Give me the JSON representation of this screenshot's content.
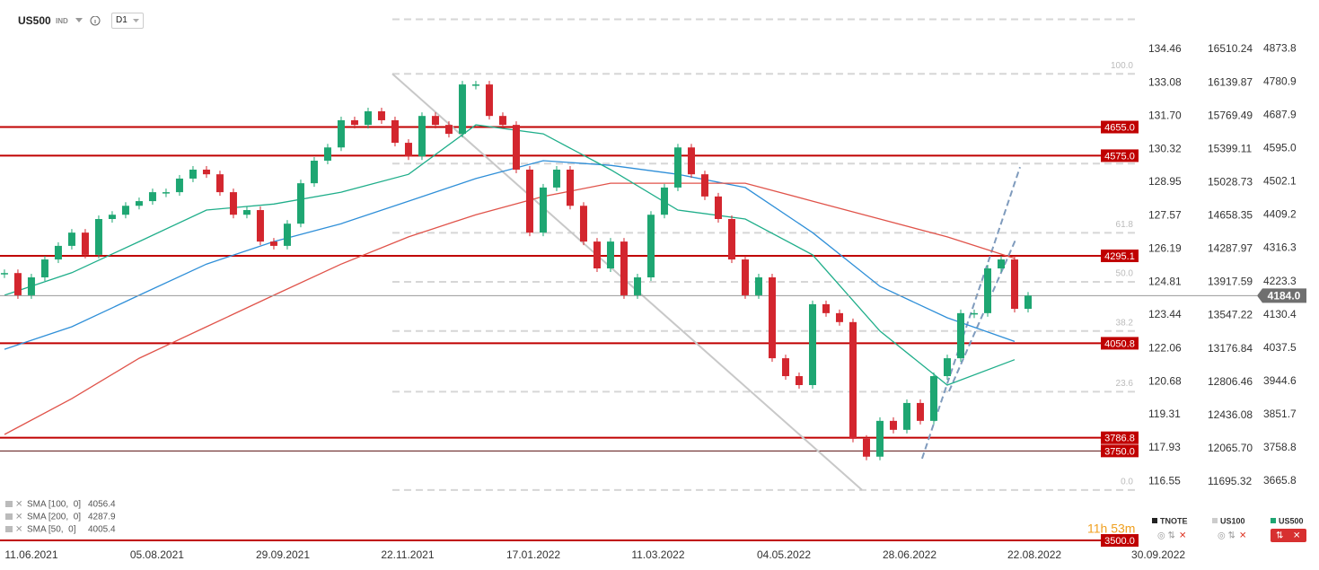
{
  "header": {
    "symbol": "US500",
    "kind": "IND",
    "timeframe": "D1"
  },
  "chart_data": {
    "type": "candlestick",
    "xlim": [
      -0.33,
      84
    ],
    "xticks": [
      {
        "value": 2,
        "label": "11.06.2021"
      },
      {
        "value": 11.33,
        "label": "05.08.2021"
      },
      {
        "value": 20.67,
        "label": "29.09.2021"
      },
      {
        "value": 29.93,
        "label": "22.11.2021"
      },
      {
        "value": 39.27,
        "label": "17.01.2022"
      },
      {
        "value": 48.53,
        "label": "11.03.2022"
      },
      {
        "value": 57.87,
        "label": "04.05.2022"
      },
      {
        "value": 67.2,
        "label": "28.06.2022"
      },
      {
        "value": 76.47,
        "label": "22.08.2022"
      },
      {
        "value": 85.67,
        "label": "30.09.2022"
      }
    ],
    "y_axes": [
      {
        "name": "TNOTE",
        "color": "#222222",
        "lim": [
          113.8,
          136.51
        ],
        "ticks": [
          {
            "value": 134.46,
            "label": "134.46"
          },
          {
            "value": 133.08,
            "label": "133.08"
          },
          {
            "value": 131.7,
            "label": "131.70"
          },
          {
            "value": 130.32,
            "label": "130.32"
          },
          {
            "value": 128.95,
            "label": "128.95"
          },
          {
            "value": 127.57,
            "label": "127.57"
          },
          {
            "value": 126.19,
            "label": "126.19"
          },
          {
            "value": 124.81,
            "label": "124.81"
          },
          {
            "value": 123.44,
            "label": "123.44"
          },
          {
            "value": 122.06,
            "label": "122.06"
          },
          {
            "value": 120.68,
            "label": "120.68"
          },
          {
            "value": 119.31,
            "label": "119.31"
          },
          {
            "value": 117.93,
            "label": "117.93"
          },
          {
            "value": 116.55,
            "label": "116.55"
          }
        ]
      },
      {
        "name": "US100",
        "color": "#cccccc",
        "lim": [
          10965,
          17060
        ],
        "ticks": [
          {
            "value": 16510.24,
            "label": "16510.24"
          },
          {
            "value": 16139.87,
            "label": "16139.87"
          },
          {
            "value": 15769.49,
            "label": "15769.49"
          },
          {
            "value": 15399.11,
            "label": "15399.11"
          },
          {
            "value": 15028.73,
            "label": "15028.73"
          },
          {
            "value": 14658.35,
            "label": "14658.35"
          },
          {
            "value": 14287.97,
            "label": "14287.97"
          },
          {
            "value": 13917.59,
            "label": "13917.59"
          },
          {
            "value": 13547.22,
            "label": "13547.22"
          },
          {
            "value": 13176.84,
            "label": "13176.84"
          },
          {
            "value": 12806.46,
            "label": "12806.46"
          },
          {
            "value": 12436.08,
            "label": "12436.08"
          },
          {
            "value": 12065.7,
            "label": "12065.70"
          },
          {
            "value": 11695.32,
            "label": "11695.32"
          }
        ]
      },
      {
        "name": "US500",
        "color": "#1ea672",
        "lim": [
          3480,
          5010
        ],
        "ticks": [
          {
            "value": 4873.8,
            "label": "4873.8"
          },
          {
            "value": 4780.9,
            "label": "4780.9"
          },
          {
            "value": 4687.9,
            "label": "4687.9"
          },
          {
            "value": 4595,
            "label": "4595.0"
          },
          {
            "value": 4502.1,
            "label": "4502.1"
          },
          {
            "value": 4409.2,
            "label": "4409.2"
          },
          {
            "value": 4316.3,
            "label": "4316.3"
          },
          {
            "value": 4223.3,
            "label": "4223.3"
          },
          {
            "value": 4130.4,
            "label": "4130.4"
          },
          {
            "value": 4037.5,
            "label": "4037.5"
          },
          {
            "value": 3944.6,
            "label": "3944.6"
          },
          {
            "value": 3851.7,
            "label": "3851.7"
          },
          {
            "value": 3758.8,
            "label": "3758.8"
          },
          {
            "value": 3665.8,
            "label": "3665.8"
          }
        ]
      }
    ],
    "price": {
      "name": "US500",
      "up_color": "#1ea672",
      "down_color": "#d3262e",
      "values": [
        4247,
        4185,
        4235,
        4285,
        4323,
        4360,
        4298,
        4398,
        4410,
        4435,
        4448,
        4473,
        4473,
        4511,
        4536,
        4523,
        4473,
        4410,
        4423,
        4335,
        4323,
        4385,
        4498,
        4561,
        4598,
        4674,
        4661,
        4699,
        4674,
        4611,
        4573,
        4686,
        4661,
        4636,
        4774,
        4774,
        4686,
        4661,
        4536,
        4360,
        4486,
        4536,
        4435,
        4335,
        4260,
        4335,
        4185,
        4235,
        4410,
        4486,
        4598,
        4523,
        4461,
        4398,
        4285,
        4185,
        4235,
        4009,
        3959,
        3934,
        4160,
        4135,
        4110,
        3784,
        3734,
        3834,
        3809,
        3884,
        3834,
        3959,
        4009,
        4135,
        4135,
        4260,
        4285,
        4147,
        4184
      ]
    },
    "last_price": {
      "value": 4184,
      "label": "4184.0"
    },
    "indicators": [
      {
        "name": "SMA [100,  0]",
        "last": 4056.4,
        "color": "#2f8fd8",
        "x": [
          0,
          5,
          10,
          15,
          20,
          25,
          30,
          35,
          40,
          45,
          50,
          55,
          60,
          65,
          70,
          75
        ],
        "values": [
          4034,
          4097,
          4185,
          4272,
          4335,
          4385,
          4448,
          4511,
          4561,
          4548,
          4523,
          4486,
          4360,
          4210,
          4122,
          4056
        ]
      },
      {
        "name": "SMA [200,  0]",
        "last": 4287.9,
        "color": "#e0534a",
        "x": [
          0,
          5,
          10,
          15,
          20,
          25,
          30,
          35,
          40,
          45,
          50,
          55,
          60,
          65,
          70,
          75
        ],
        "values": [
          3796,
          3896,
          4009,
          4097,
          4185,
          4272,
          4348,
          4410,
          4461,
          4498,
          4498,
          4498,
          4448,
          4398,
          4348,
          4288
        ]
      },
      {
        "name": "SMA [50,  0]",
        "last": 4005.4,
        "color": "#1fae8a",
        "x": [
          0,
          5,
          10,
          15,
          20,
          25,
          30,
          35,
          40,
          45,
          50,
          55,
          60,
          65,
          70,
          75
        ],
        "values": [
          4185,
          4248,
          4335,
          4423,
          4440,
          4473,
          4523,
          4661,
          4636,
          4536,
          4423,
          4398,
          4298,
          4085,
          3934,
          4005
        ]
      }
    ],
    "levels": [
      {
        "value": 4655,
        "label": "4655.0"
      },
      {
        "value": 4575,
        "label": "4575.0"
      },
      {
        "value": 4295.1,
        "label": "4295.1"
      },
      {
        "value": 4050.8,
        "label": "4050.8"
      },
      {
        "value": 3786.8,
        "label": "3786.8"
      },
      {
        "value": 3750,
        "label": "3750.0"
      },
      {
        "value": 3500,
        "label": "3500.0"
      }
    ],
    "level_color": "#c00000",
    "fib_levels": [
      {
        "label": "100.0",
        "price": 4803.6
      },
      {
        "label": "61.8",
        "price": 4359.4
      },
      {
        "label": "50.0",
        "price": 4222.3
      },
      {
        "label": "38.2",
        "price": 4085.1
      },
      {
        "label": "23.6",
        "price": 3915.5
      },
      {
        "label": "0.0",
        "price": 3640.9
      }
    ],
    "extra_dashed_levels": [
      4956,
      4553
    ],
    "trendlines": [
      {
        "style": "solid",
        "color": "#c8c8c8",
        "x": [
          28.8,
          63.67
        ],
        "values": [
          4803.6,
          3640.9
        ]
      },
      {
        "style": "dashed",
        "color": "#7f9bbd",
        "x": [
          68.13,
          75.4
        ],
        "values": [
          3728.6,
          4543
        ]
      },
      {
        "style": "dashed",
        "color": "#7f9bbd",
        "x": [
          70.13,
          75.07
        ],
        "values": [
          3916.5,
          4340
        ]
      }
    ],
    "timer": "11h 53m"
  }
}
